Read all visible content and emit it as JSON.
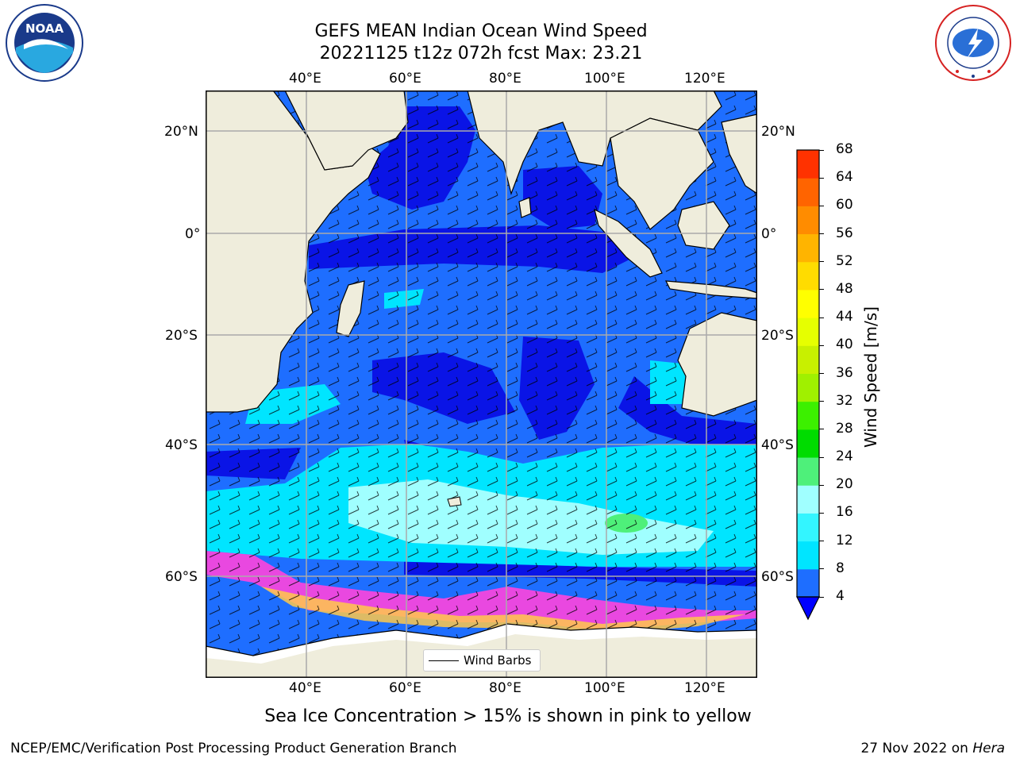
{
  "title": {
    "line1": "GEFS MEAN Indian Ocean Wind Speed",
    "line2": "20221125 t12z 072h fcst   Max: 23.21"
  },
  "logos": {
    "left": "noaa-logo",
    "right": "nws-logo"
  },
  "map": {
    "lon_labels": [
      "40°E",
      "60°E",
      "80°E",
      "100°E",
      "120°E"
    ],
    "lon_values": [
      40,
      60,
      80,
      100,
      120
    ],
    "lat_labels": [
      "20°N",
      "0°",
      "20°S",
      "40°S",
      "60°S"
    ],
    "lat_values": [
      20,
      0,
      -20,
      -40,
      -60
    ],
    "lon_range": [
      20,
      130
    ],
    "lat_range": [
      -75,
      27
    ],
    "gridlines": true,
    "legend_label": "Wind Barbs",
    "legend_placement": "bottom-center"
  },
  "colorbar": {
    "label": "Wind Speed [m/s]",
    "ticks": [
      "4",
      "8",
      "12",
      "16",
      "20",
      "24",
      "28",
      "32",
      "36",
      "40",
      "44",
      "48",
      "52",
      "56",
      "60",
      "64",
      "68"
    ],
    "levels": [
      4,
      8,
      12,
      16,
      20,
      24,
      28,
      32,
      36,
      40,
      44,
      48,
      52,
      56,
      60,
      64,
      68
    ],
    "colors": [
      "#1e6eff",
      "#00e5ff",
      "#33f5ff",
      "#a0ffff",
      "#4ef07a",
      "#00dc00",
      "#3cf000",
      "#a0f000",
      "#c8f000",
      "#e6ff00",
      "#ffff00",
      "#ffdc00",
      "#ffb400",
      "#ff8c00",
      "#ff6400",
      "#ff3200"
    ],
    "under_color": "#0000ff",
    "extend": "min"
  },
  "palette": {
    "land": "#efeddc",
    "ocean_dark": "#0a14e6",
    "ocean_mid": "#1e6eff",
    "ocean_cyan": "#00e5ff",
    "ocean_light": "#a0ffff",
    "max_wind": "#4ef07a",
    "ice": "#ff44dd"
  },
  "caption": "Sea Ice Concentration > 15% is shown in pink to yellow",
  "footer": {
    "left": "NCEP/EMC/Verification Post Processing Product Generation Branch",
    "date": "27 Nov 2022 on ",
    "machine": "Hera"
  }
}
